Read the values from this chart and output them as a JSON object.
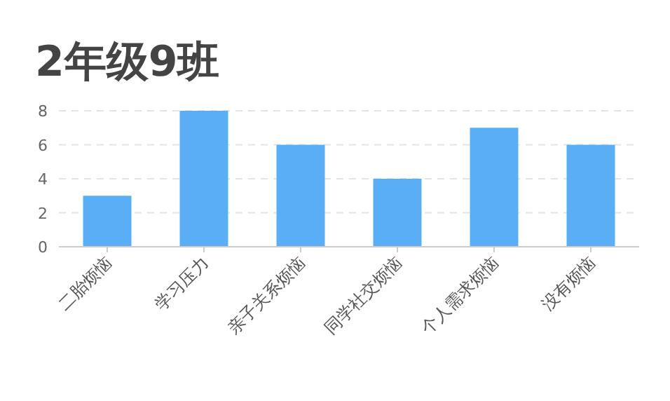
{
  "chart_data": {
    "type": "bar",
    "title": "2年级9班",
    "categories": [
      "二胎烦恼",
      "学习压力",
      "亲子关系烦恼",
      "同学社交烦恼",
      "个人需求烦恼",
      "没有烦恼"
    ],
    "values": [
      3,
      8,
      6,
      4,
      7,
      6
    ],
    "color": "#5aaef5",
    "ylim": [
      0,
      8
    ],
    "yticks": [
      0,
      2,
      4,
      6,
      8
    ],
    "grid": "y"
  }
}
